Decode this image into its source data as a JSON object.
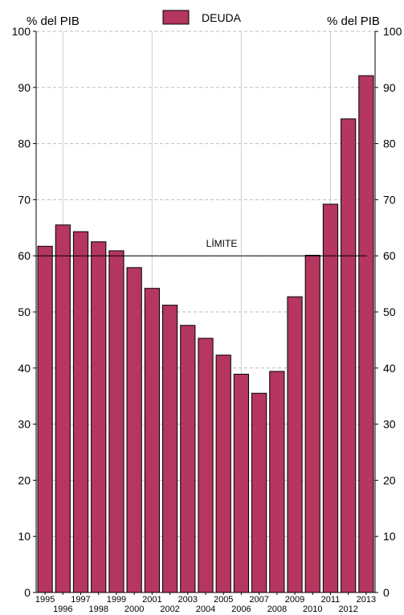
{
  "chart_data": {
    "type": "bar",
    "title": "",
    "y_unit_left": "% del PIB",
    "y_unit_right": "% del PIB",
    "ylim": [
      0,
      100
    ],
    "y_ticks": [
      0,
      10,
      20,
      30,
      40,
      50,
      60,
      70,
      80,
      90,
      100
    ],
    "grid": "dashed horizontal and vertical",
    "legend_position": "top-center",
    "categories": [
      "1995",
      "1996",
      "1997",
      "1998",
      "1999",
      "2000",
      "2001",
      "2002",
      "2003",
      "2004",
      "2005",
      "2006",
      "2007",
      "2008",
      "2009",
      "2010",
      "2011",
      "2012",
      "2013"
    ],
    "series": [
      {
        "name": "DEUDA",
        "color": "#b5365e",
        "values": [
          61.7,
          65.5,
          64.3,
          62.5,
          60.9,
          57.9,
          54.2,
          51.2,
          47.6,
          45.3,
          42.3,
          38.9,
          35.5,
          39.4,
          52.7,
          60.1,
          69.2,
          84.4,
          92.1
        ]
      }
    ],
    "reference_line": {
      "label": "LÍMITE",
      "value": 60
    }
  }
}
